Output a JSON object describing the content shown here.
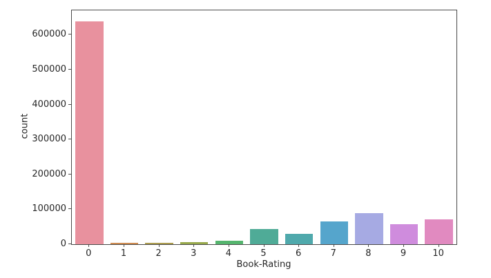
{
  "chart_data": {
    "type": "bar",
    "title": "",
    "xlabel": "Book-Rating",
    "ylabel": "count",
    "categories": [
      "0",
      "1",
      "2",
      "3",
      "4",
      "5",
      "6",
      "7",
      "8",
      "9",
      "10"
    ],
    "values": [
      638000,
      3500,
      4000,
      6000,
      9000,
      43000,
      30500,
      65000,
      89000,
      57000,
      71000
    ],
    "bar_colors": [
      "#e8919e",
      "#cd8a4f",
      "#ab9b4e",
      "#97a84b",
      "#55b56e",
      "#4fab97",
      "#4fa9ac",
      "#55a5cc",
      "#a6aae3",
      "#cf8cdd",
      "#e18ac0"
    ],
    "ylim": [
      0,
      670000
    ],
    "yticks": [
      0,
      100000,
      200000,
      300000,
      400000,
      500000,
      600000
    ],
    "ytick_labels": [
      "0",
      "100000",
      "200000",
      "300000",
      "400000",
      "500000",
      "600000"
    ],
    "grid": false,
    "legend": null,
    "bar_rel_width": 0.8,
    "axis_color": "#4a4a4a",
    "text_color": "#262626",
    "background_color": "#ffffff"
  }
}
